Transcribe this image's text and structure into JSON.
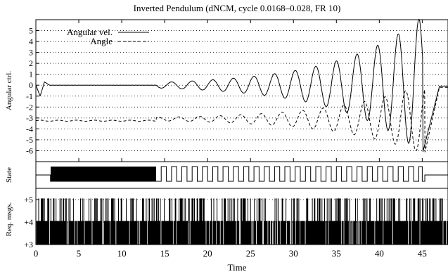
{
  "chart_data": {
    "type": "line",
    "title": "Inverted Pendulum (dNCM, cycle 0.0168–0.028, FR 10)",
    "xlabel": "Time",
    "xlim": [
      0,
      48
    ],
    "x_ticks": [
      0,
      5,
      10,
      15,
      20,
      25,
      30,
      35,
      40,
      45
    ],
    "panels": [
      {
        "ylabel": "Angular ctrl.",
        "ylim": [
          -7,
          6
        ],
        "y_ticks": [
          5,
          4,
          3,
          2,
          1,
          0,
          -1,
          -2,
          -3,
          -4,
          -5,
          -6
        ],
        "grid": true,
        "legend_position": "top-left",
        "series": [
          {
            "name": "Angular vel.",
            "style": "solid",
            "description": "flat near 0 until t=14, then oscillation with period ~2.4 and growing amplitude, peak ~5.8 at t=43.3, min ~-6.2 at t=45, settles near 0 by t=47"
          },
          {
            "name": "Angle",
            "style": "dashed",
            "description": "offset near -3.2 until t=14, then oscillation with growing amplitude, min ~-6.2 at t=45.3, returns toward 0"
          }
        ]
      },
      {
        "ylabel": "State",
        "series": [
          {
            "name": "state",
            "style": "digital",
            "description": "dense toggling between t=1.7 and t=14, regular square pulses t=14.6 to t=45, low then high after 45.3"
          }
        ]
      },
      {
        "ylabel": "Req. msgs.",
        "ylim": [
          3,
          5.5
        ],
        "y_ticks": [
          "+3",
          "+4",
          "+5"
        ],
        "series": [
          {
            "name": "requests",
            "style": "impulse",
            "description": "dense vertical impulses from t=0 to t=48, mostly spanning +3 to +4, frequently reaching +5"
          }
        ]
      }
    ]
  }
}
